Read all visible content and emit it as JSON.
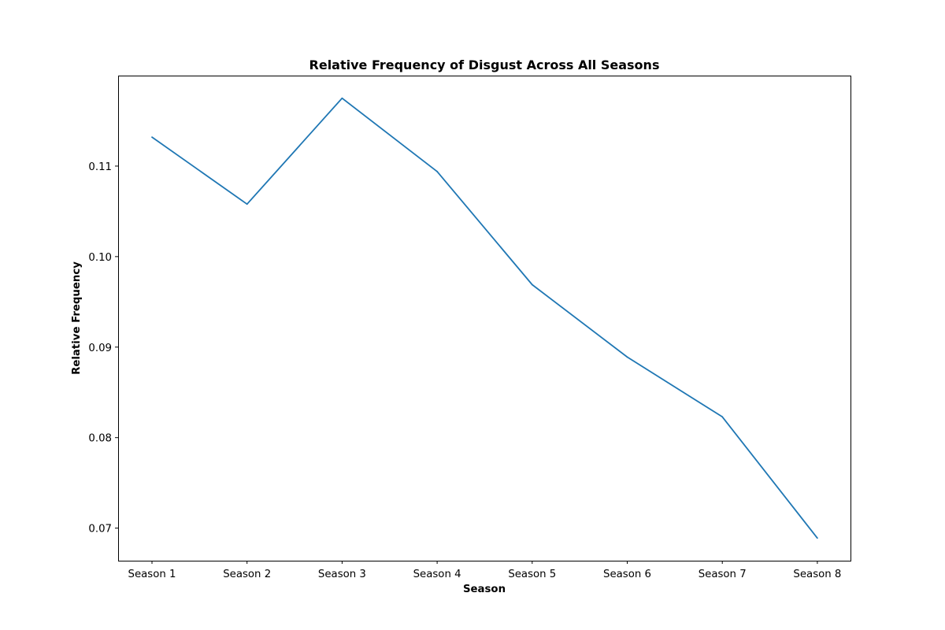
{
  "chart_data": {
    "type": "line",
    "title": "Relative Frequency of Disgust Across All Seasons",
    "xlabel": "Season",
    "ylabel": "Relative Frequency",
    "categories": [
      "Season 1",
      "Season 2",
      "Season 3",
      "Season 4",
      "Season 5",
      "Season 6",
      "Season 7",
      "Season 8"
    ],
    "series": [
      {
        "values": [
          0.1132,
          0.1058,
          0.1175,
          0.1094,
          0.0969,
          0.0889,
          0.0823,
          0.0689
        ],
        "color": "#1f77b4"
      }
    ],
    "yticks": [
      0.07,
      0.08,
      0.09,
      0.1,
      0.11
    ],
    "ytick_labels": [
      "0.07",
      "0.08",
      "0.09",
      "0.10",
      "0.11"
    ],
    "ylim": [
      0.0664,
      0.12
    ],
    "grid": false,
    "legend": "none"
  }
}
